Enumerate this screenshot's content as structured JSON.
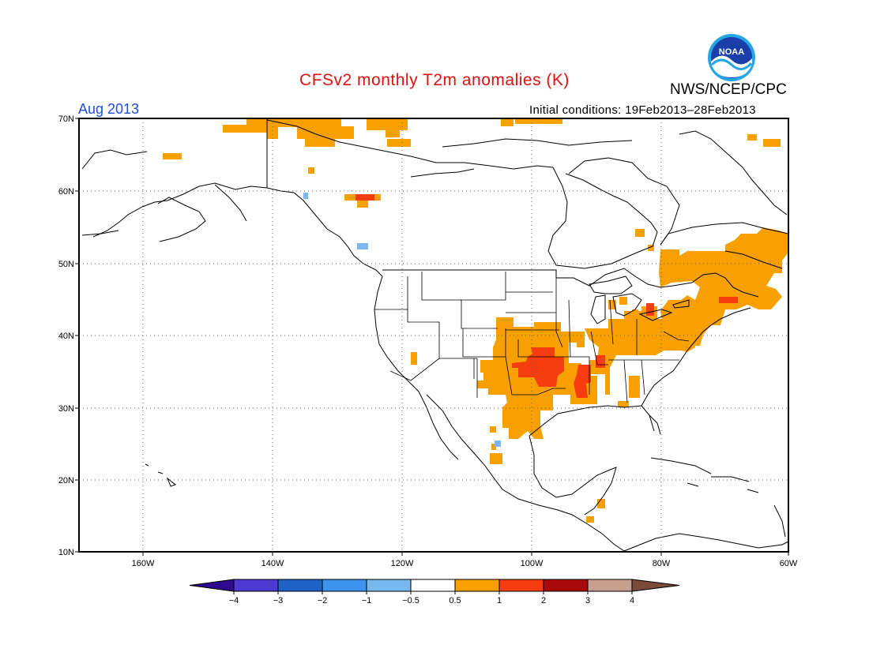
{
  "header": {
    "title": "CFSv2 monthly T2m anomalies (K)",
    "agency": "NWS/NCEP/CPC",
    "month": "Aug 2013",
    "initial_conditions": "Initial conditions: 19Feb2013–28Feb2013",
    "logo_text": "NOAA"
  },
  "axes": {
    "lat_labels": [
      "70N",
      "60N",
      "50N",
      "40N",
      "30N",
      "20N",
      "10N"
    ],
    "lon_labels": [
      "160W",
      "140W",
      "120W",
      "100W",
      "80W",
      "60W"
    ]
  },
  "colorbar": {
    "labels": [
      "−4",
      "−3",
      "−2",
      "−1",
      "−0.5",
      "0.5",
      "1",
      "2",
      "3",
      "4"
    ],
    "colors": {
      "lt_m4": "#2e0a8c",
      "m4_m3": "#4d3ad0",
      "m3_m2": "#1e62c8",
      "m2_m1": "#3d92ec",
      "m1_m05": "#7ab8f0",
      "neutral": "#ffffff",
      "p05_1": "#f7a000",
      "p1_2": "#f53d10",
      "p2_3": "#a80a0a",
      "p3_4": "#c8a090",
      "gt_4": "#7a4a3a"
    }
  }
}
